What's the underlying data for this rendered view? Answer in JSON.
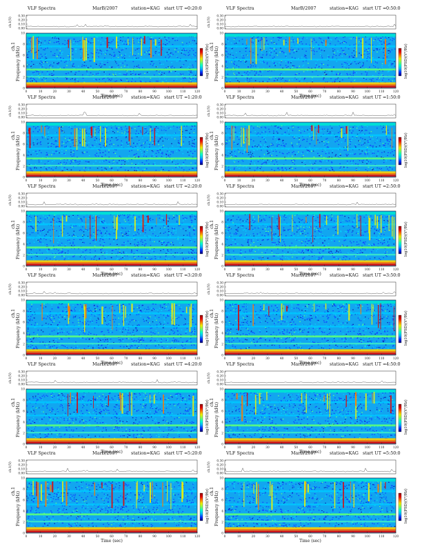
{
  "page": {
    "background": "#ffffff",
    "colormap": [
      "#00006e",
      "#0028ff",
      "#00b4ff",
      "#00ffd2",
      "#7dff5a",
      "#f0f000",
      "#ff7800",
      "#e60000",
      "#8c0000"
    ]
  },
  "panel_labels": {
    "title": "VLF Spectra",
    "date": "MarB/2007",
    "station": "station=KAG",
    "start_prefix": "start  UT =",
    "top_ylabel": "ch.1(V)",
    "main_ylabel": "Frequency (kHz)",
    "ch_label": "ch.1",
    "xlabel": "Time (sec)",
    "colorbar_label": "log10(PSD)(V²/Hz)"
  },
  "panels": [
    {
      "start_ut": "0:20:0"
    },
    {
      "start_ut": "0:50:0"
    },
    {
      "start_ut": "1:20:0"
    },
    {
      "start_ut": "1:50:0"
    },
    {
      "start_ut": "2:20:0"
    },
    {
      "start_ut": "2:50:0"
    },
    {
      "start_ut": "3:20:0"
    },
    {
      "start_ut": "3:50:0"
    },
    {
      "start_ut": "4:20:0"
    },
    {
      "start_ut": "4:50:0"
    },
    {
      "start_ut": "5:20:0"
    },
    {
      "start_ut": "5:50:0"
    }
  ],
  "chart_data": {
    "type": "heatmap",
    "title": "VLF Spectra",
    "xlabel": "Time (sec)",
    "ylabel": "Frequency (kHz)",
    "xlim": [
      0,
      120
    ],
    "ylim": [
      0,
      10
    ],
    "x_ticks": [
      "0",
      "10",
      "20",
      "30",
      "40",
      "50",
      "60",
      "70",
      "80",
      "90",
      "100",
      "110",
      "120"
    ],
    "y_ticks": [
      "0",
      "2",
      "4",
      "6",
      "8",
      "10"
    ],
    "top_panel": {
      "ylabel": "ch.1(V)",
      "y_ticks": [
        "0.30",
        "0.20",
        "0.10",
        "0.00"
      ]
    },
    "colorbar": {
      "label": "log10(PSD)(V²/Hz)"
    },
    "grid": false
  }
}
